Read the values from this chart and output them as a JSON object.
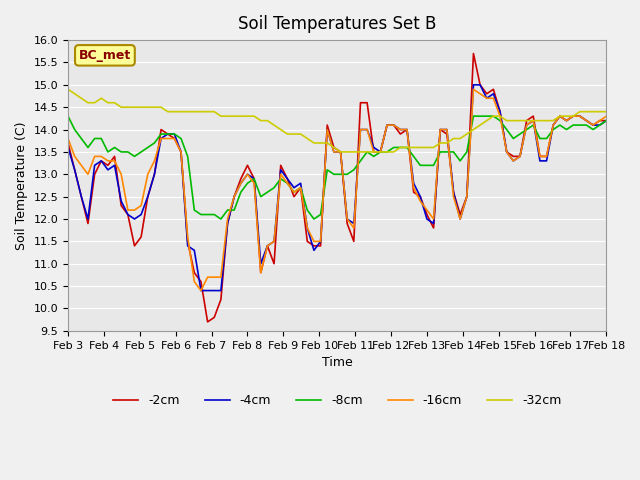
{
  "title": "Soil Temperatures Set B",
  "xlabel": "Time",
  "ylabel": "Soil Temperature (C)",
  "ylim": [
    9.5,
    16.0
  ],
  "legend_label": "BC_met",
  "legend_box_color": "#ffff99",
  "legend_box_edge": "#aa8800",
  "series_labels": [
    "-2cm",
    "-4cm",
    "-8cm",
    "-16cm",
    "-32cm"
  ],
  "series_colors": [
    "#cc0000",
    "#0000cc",
    "#00bb00",
    "#ff8800",
    "#cccc00"
  ],
  "x_tick_labels": [
    "Feb 3",
    "Feb 4",
    "Feb 5",
    "Feb 6",
    "Feb 7",
    "Feb 8",
    "Feb 9",
    "Feb 10",
    "Feb 11",
    "Feb 12",
    "Feb 13",
    "Feb 14",
    "Feb 15",
    "Feb 16",
    "Feb 17",
    "Feb 18"
  ],
  "background_color": "#e8e8e8",
  "plot_bg": "#e8e8e8",
  "series_2cm": [
    13.7,
    13.1,
    12.5,
    11.9,
    13.0,
    13.3,
    13.2,
    13.4,
    12.3,
    12.1,
    11.4,
    11.6,
    12.5,
    13.0,
    14.0,
    13.9,
    13.8,
    13.5,
    11.5,
    10.8,
    10.6,
    9.7,
    9.8,
    10.2,
    11.9,
    12.5,
    12.9,
    13.2,
    12.9,
    10.8,
    11.4,
    11.0,
    13.2,
    12.9,
    12.5,
    12.7,
    11.5,
    11.4,
    11.4,
    14.1,
    13.6,
    13.5,
    11.9,
    11.5,
    14.6,
    14.6,
    13.5,
    13.5,
    14.1,
    14.1,
    13.9,
    14.0,
    12.6,
    12.5,
    12.1,
    11.8,
    14.0,
    13.9,
    12.6,
    12.1,
    12.5,
    15.7,
    15.0,
    14.8,
    14.9,
    14.4,
    13.5,
    13.4,
    13.4,
    14.2,
    14.3,
    13.4,
    13.4,
    14.1,
    14.3,
    14.2,
    14.3,
    14.3,
    14.2,
    14.1,
    14.2,
    14.2
  ],
  "series_4cm": [
    13.6,
    13.1,
    12.5,
    12.0,
    13.2,
    13.3,
    13.1,
    13.2,
    12.4,
    12.1,
    12.0,
    12.1,
    12.5,
    13.0,
    13.8,
    13.9,
    13.9,
    13.5,
    11.4,
    11.3,
    10.4,
    10.4,
    10.4,
    10.4,
    11.9,
    12.5,
    12.8,
    13.0,
    12.9,
    11.0,
    11.4,
    11.5,
    13.1,
    12.9,
    12.7,
    12.8,
    11.8,
    11.3,
    11.5,
    14.0,
    13.5,
    13.5,
    12.0,
    11.9,
    14.0,
    14.0,
    13.6,
    13.5,
    14.1,
    14.1,
    14.0,
    14.0,
    12.8,
    12.5,
    12.0,
    11.9,
    14.0,
    14.0,
    12.6,
    12.0,
    12.5,
    15.0,
    15.0,
    14.7,
    14.8,
    14.4,
    13.5,
    13.3,
    13.4,
    14.1,
    14.2,
    13.3,
    13.3,
    14.1,
    14.3,
    14.2,
    14.3,
    14.3,
    14.2,
    14.1,
    14.1,
    14.2
  ],
  "series_8cm": [
    14.3,
    14.0,
    13.8,
    13.6,
    13.8,
    13.8,
    13.5,
    13.6,
    13.5,
    13.5,
    13.4,
    13.5,
    13.6,
    13.7,
    13.9,
    13.9,
    13.9,
    13.8,
    13.4,
    12.2,
    12.1,
    12.1,
    12.1,
    12.0,
    12.2,
    12.2,
    12.6,
    12.8,
    12.9,
    12.5,
    12.6,
    12.7,
    12.9,
    12.8,
    12.6,
    12.7,
    12.2,
    12.0,
    12.1,
    13.1,
    13.0,
    13.0,
    13.0,
    13.1,
    13.3,
    13.5,
    13.4,
    13.5,
    13.5,
    13.6,
    13.6,
    13.6,
    13.4,
    13.2,
    13.2,
    13.2,
    13.5,
    13.5,
    13.5,
    13.3,
    13.5,
    14.3,
    14.3,
    14.3,
    14.3,
    14.2,
    14.0,
    13.8,
    13.9,
    14.0,
    14.1,
    13.8,
    13.8,
    14.0,
    14.1,
    14.0,
    14.1,
    14.1,
    14.1,
    14.0,
    14.1,
    14.2
  ],
  "series_16cm": [
    13.8,
    13.4,
    13.2,
    13.0,
    13.4,
    13.4,
    13.3,
    13.3,
    13.0,
    12.2,
    12.2,
    12.3,
    13.0,
    13.3,
    13.8,
    13.8,
    13.8,
    13.5,
    11.6,
    10.6,
    10.4,
    10.7,
    10.7,
    10.7,
    12.0,
    12.5,
    12.8,
    13.0,
    12.8,
    10.8,
    11.4,
    11.5,
    13.0,
    12.8,
    12.6,
    12.7,
    11.8,
    11.5,
    11.5,
    14.0,
    13.5,
    13.5,
    12.0,
    11.8,
    14.0,
    14.0,
    13.5,
    13.5,
    14.1,
    14.1,
    14.0,
    14.0,
    12.7,
    12.4,
    12.2,
    12.0,
    14.0,
    14.0,
    12.5,
    12.0,
    12.5,
    14.9,
    14.8,
    14.7,
    14.7,
    14.3,
    13.5,
    13.3,
    13.4,
    14.1,
    14.2,
    13.4,
    13.4,
    14.1,
    14.3,
    14.2,
    14.3,
    14.3,
    14.2,
    14.1,
    14.2,
    14.3
  ],
  "series_32cm": [
    14.9,
    14.8,
    14.7,
    14.6,
    14.6,
    14.7,
    14.6,
    14.6,
    14.5,
    14.5,
    14.5,
    14.5,
    14.5,
    14.5,
    14.5,
    14.4,
    14.4,
    14.4,
    14.4,
    14.4,
    14.4,
    14.4,
    14.4,
    14.3,
    14.3,
    14.3,
    14.3,
    14.3,
    14.3,
    14.2,
    14.2,
    14.1,
    14.0,
    13.9,
    13.9,
    13.9,
    13.8,
    13.7,
    13.7,
    13.7,
    13.6,
    13.5,
    13.5,
    13.5,
    13.5,
    13.5,
    13.5,
    13.5,
    13.5,
    13.5,
    13.6,
    13.6,
    13.6,
    13.6,
    13.6,
    13.6,
    13.7,
    13.7,
    13.8,
    13.8,
    13.9,
    14.0,
    14.1,
    14.2,
    14.3,
    14.3,
    14.2,
    14.2,
    14.2,
    14.2,
    14.2,
    14.2,
    14.2,
    14.2,
    14.3,
    14.3,
    14.3,
    14.4,
    14.4,
    14.4,
    14.4,
    14.4
  ]
}
